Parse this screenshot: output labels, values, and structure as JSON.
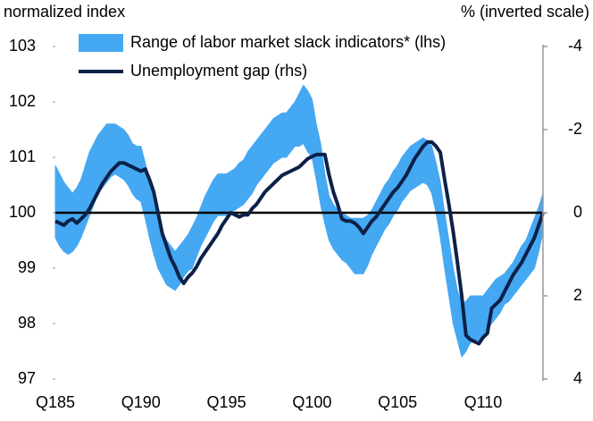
{
  "chart_data": {
    "type": "band_line",
    "y_label": "normalized index",
    "y2_label": "% (inverted scale)",
    "categories": [
      "Q185",
      null,
      null,
      null,
      null,
      null,
      null,
      null,
      null,
      null,
      null,
      null,
      null,
      null,
      null,
      null,
      null,
      null,
      null,
      null,
      "Q190",
      null,
      null,
      null,
      null,
      null,
      null,
      null,
      null,
      null,
      null,
      null,
      null,
      null,
      null,
      null,
      null,
      null,
      null,
      null,
      "Q195",
      null,
      null,
      null,
      null,
      null,
      null,
      null,
      null,
      null,
      null,
      null,
      null,
      null,
      null,
      null,
      null,
      null,
      null,
      null,
      "Q100",
      null,
      null,
      null,
      null,
      null,
      null,
      null,
      null,
      null,
      null,
      null,
      null,
      null,
      null,
      null,
      null,
      null,
      null,
      null,
      "Q105",
      null,
      null,
      null,
      null,
      null,
      null,
      null,
      null,
      null,
      null,
      null,
      null,
      null,
      null,
      null,
      null,
      null,
      null,
      null,
      "Q110",
      null,
      null,
      null,
      null,
      null,
      null,
      null,
      null,
      null,
      null,
      null,
      null,
      null,
      null
    ],
    "series": [
      {
        "name": "Range of labor market slack indicators* (lhs)",
        "color": "#45a8f2",
        "axis": "y",
        "high": [
          100.85,
          100.7,
          100.55,
          100.45,
          100.35,
          100.45,
          100.6,
          100.85,
          101.1,
          101.25,
          101.4,
          101.5,
          101.6,
          101.6,
          101.6,
          101.55,
          101.5,
          101.4,
          101.25,
          101.2,
          101.2,
          100.9,
          100.6,
          100.2,
          99.8,
          99.65,
          99.5,
          99.4,
          99.3,
          99.4,
          99.5,
          99.6,
          99.75,
          99.9,
          100.1,
          100.3,
          100.45,
          100.6,
          100.7,
          100.7,
          100.7,
          100.75,
          100.8,
          100.9,
          100.95,
          101.1,
          101.2,
          101.3,
          101.4,
          101.5,
          101.6,
          101.7,
          101.75,
          101.8,
          101.8,
          101.9,
          102.0,
          102.15,
          102.3,
          102.2,
          102.05,
          101.6,
          101.25,
          100.7,
          100.3,
          100.15,
          100.05,
          100.0,
          99.95,
          99.9,
          99.9,
          99.9,
          99.9,
          99.95,
          100.05,
          100.2,
          100.35,
          100.5,
          100.6,
          100.75,
          100.85,
          101.0,
          101.1,
          101.2,
          101.25,
          101.3,
          101.35,
          101.3,
          101.2,
          100.9,
          100.55,
          100.0,
          99.5,
          99.0,
          98.6,
          98.35,
          98.4,
          98.5,
          98.5,
          98.5,
          98.5,
          98.6,
          98.7,
          98.8,
          98.85,
          98.9,
          99.0,
          99.1,
          99.25,
          99.4,
          99.5,
          99.7,
          99.9,
          100.1,
          100.35
        ],
        "low": [
          99.55,
          99.4,
          99.3,
          99.25,
          99.3,
          99.4,
          99.55,
          99.75,
          99.95,
          100.15,
          100.35,
          100.45,
          100.55,
          100.65,
          100.7,
          100.65,
          100.6,
          100.5,
          100.35,
          100.25,
          100.2,
          99.9,
          99.55,
          99.25,
          99.0,
          98.85,
          98.7,
          98.65,
          98.6,
          98.7,
          98.85,
          98.95,
          99.0,
          99.2,
          99.4,
          99.55,
          99.7,
          99.85,
          99.95,
          99.95,
          99.95,
          100.0,
          100.05,
          100.1,
          100.15,
          100.25,
          100.35,
          100.5,
          100.6,
          100.7,
          100.8,
          100.9,
          100.95,
          101.0,
          101.0,
          101.1,
          101.2,
          101.2,
          101.25,
          101.1,
          101.0,
          100.6,
          100.15,
          99.8,
          99.5,
          99.35,
          99.25,
          99.15,
          99.1,
          99.0,
          98.9,
          98.9,
          98.9,
          99.05,
          99.25,
          99.4,
          99.55,
          99.7,
          99.8,
          99.95,
          100.05,
          100.2,
          100.3,
          100.4,
          100.45,
          100.5,
          100.55,
          100.5,
          100.35,
          100.0,
          99.55,
          99.0,
          98.5,
          98.0,
          97.7,
          97.4,
          97.5,
          97.65,
          97.7,
          97.7,
          97.8,
          97.9,
          98.0,
          98.1,
          98.2,
          98.35,
          98.4,
          98.5,
          98.6,
          98.7,
          98.8,
          98.9,
          99.0,
          99.3,
          99.65
        ]
      },
      {
        "name": "Unemployment gap (rhs)",
        "color": "#0c2148",
        "axis": "y2",
        "values": [
          0.2,
          0.25,
          0.3,
          0.2,
          0.15,
          0.25,
          0.15,
          0.05,
          -0.1,
          -0.3,
          -0.5,
          -0.7,
          -0.85,
          -1.0,
          -1.1,
          -1.2,
          -1.2,
          -1.15,
          -1.1,
          -1.05,
          -1.0,
          -1.05,
          -0.8,
          -0.5,
          0.0,
          0.5,
          0.8,
          1.1,
          1.3,
          1.55,
          1.7,
          1.55,
          1.45,
          1.3,
          1.1,
          0.95,
          0.8,
          0.65,
          0.5,
          0.3,
          0.15,
          0.0,
          0.05,
          0.1,
          0.05,
          0.05,
          -0.1,
          -0.2,
          -0.35,
          -0.5,
          -0.6,
          -0.7,
          -0.8,
          -0.9,
          -0.95,
          -1.0,
          -1.05,
          -1.1,
          -1.2,
          -1.3,
          -1.35,
          -1.4,
          -1.4,
          -1.4,
          -0.9,
          -0.5,
          -0.2,
          0.15,
          0.2,
          0.2,
          0.25,
          0.35,
          0.5,
          0.35,
          0.2,
          0.1,
          -0.05,
          -0.2,
          -0.35,
          -0.5,
          -0.6,
          -0.75,
          -0.9,
          -1.1,
          -1.3,
          -1.45,
          -1.6,
          -1.7,
          -1.7,
          -1.6,
          -1.45,
          -0.8,
          -0.2,
          0.45,
          1.2,
          2.0,
          2.95,
          3.05,
          3.1,
          3.15,
          3.0,
          2.9,
          2.3,
          2.2,
          2.1,
          1.9,
          1.7,
          1.5,
          1.35,
          1.2,
          1.0,
          0.8,
          0.6,
          0.3,
          0.0
        ]
      }
    ],
    "ylim": [
      97,
      103
    ],
    "yticks": [
      97,
      98,
      99,
      100,
      101,
      102,
      103
    ],
    "y2lim": [
      -4,
      4
    ],
    "y2ticks": [
      -4,
      -2,
      0,
      2,
      4
    ],
    "y2_inverted": true,
    "reference_line": 100,
    "grid": false,
    "legend": "top-left"
  }
}
